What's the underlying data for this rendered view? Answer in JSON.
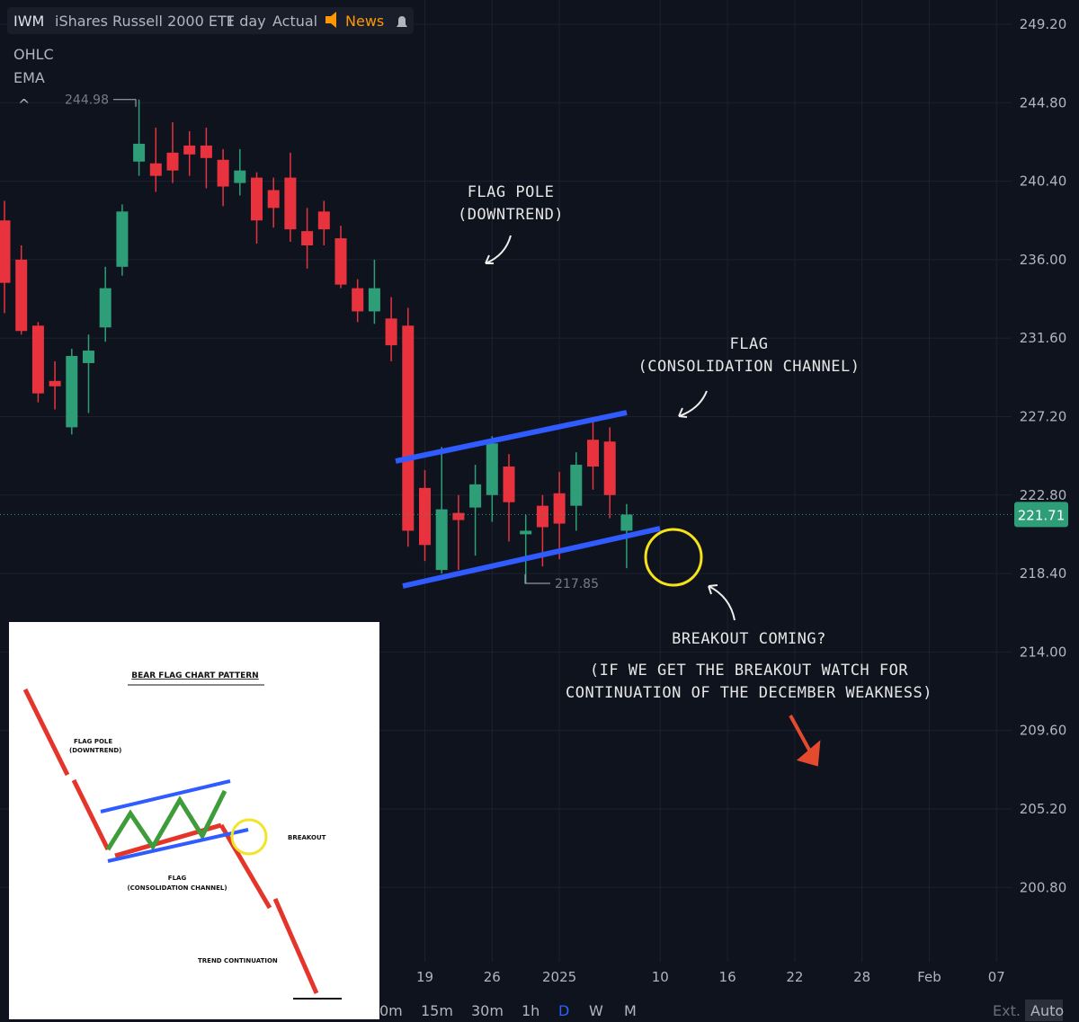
{
  "header": {
    "symbol": "IWM",
    "name": "iShares Russell 2000 ETF",
    "interval": "1 day",
    "mode": "Actual",
    "news": "News"
  },
  "indicators": [
    "OHLC",
    "EMA"
  ],
  "chart": {
    "type": "candlestick",
    "ylim": [
      196.63,
      250.56
    ],
    "yticks": [
      {
        "value": 249.2,
        "label": "249.20"
      },
      {
        "value": 244.8,
        "label": "244.80"
      },
      {
        "value": 240.4,
        "label": "240.40"
      },
      {
        "value": 236,
        "label": "236.00"
      },
      {
        "value": 231.6,
        "label": "231.60"
      },
      {
        "value": 227.2,
        "label": "227.20"
      },
      {
        "value": 222.8,
        "label": "222.80"
      },
      {
        "value": 218.4,
        "label": "218.40"
      },
      {
        "value": 214,
        "label": "214.00"
      },
      {
        "value": 209.6,
        "label": "209.60"
      },
      {
        "value": 205.2,
        "label": "205.20"
      },
      {
        "value": 200.8,
        "label": "200.80"
      }
    ],
    "last_price": 221.71,
    "high_label": 244.98,
    "low_label": 217.85,
    "up_color": "#2e9e78",
    "down_color": "#e8333f",
    "candles": [
      {
        "o": 238.2,
        "h": 239.3,
        "l": 233,
        "c": 234.7
      },
      {
        "o": 236,
        "h": 236.8,
        "l": 231.8,
        "c": 232
      },
      {
        "o": 232.3,
        "h": 232.5,
        "l": 228,
        "c": 228.5
      },
      {
        "o": 229.2,
        "h": 230.3,
        "l": 227.6,
        "c": 228.9
      },
      {
        "o": 226.6,
        "h": 231,
        "l": 226.2,
        "c": 230.6
      },
      {
        "o": 230.2,
        "h": 231.8,
        "l": 227.4,
        "c": 230.9
      },
      {
        "o": 232.2,
        "h": 235.6,
        "l": 231.4,
        "c": 234.4
      },
      {
        "o": 235.6,
        "h": 239.1,
        "l": 235.1,
        "c": 238.7
      },
      {
        "o": 241.5,
        "h": 244.98,
        "l": 240.7,
        "c": 242.5
      },
      {
        "o": 241.4,
        "h": 243.4,
        "l": 239.8,
        "c": 240.7
      },
      {
        "o": 242,
        "h": 243.7,
        "l": 240.3,
        "c": 241
      },
      {
        "o": 242.4,
        "h": 243.2,
        "l": 240.7,
        "c": 241.9
      },
      {
        "o": 242.4,
        "h": 243.4,
        "l": 240,
        "c": 241.7
      },
      {
        "o": 241.6,
        "h": 242.2,
        "l": 239,
        "c": 240.1
      },
      {
        "o": 240.3,
        "h": 242.2,
        "l": 239.6,
        "c": 241
      },
      {
        "o": 240.6,
        "h": 240.9,
        "l": 236.9,
        "c": 238.2
      },
      {
        "o": 239.9,
        "h": 240.6,
        "l": 237.8,
        "c": 238.9
      },
      {
        "o": 240.6,
        "h": 242,
        "l": 237,
        "c": 237.7
      },
      {
        "o": 237.6,
        "h": 238.9,
        "l": 235.5,
        "c": 236.8
      },
      {
        "o": 238.7,
        "h": 239.3,
        "l": 236.8,
        "c": 237.7
      },
      {
        "o": 237.2,
        "h": 237.9,
        "l": 234.4,
        "c": 234.6
      },
      {
        "o": 234.4,
        "h": 234.9,
        "l": 232.5,
        "c": 233.1
      },
      {
        "o": 233.1,
        "h": 236,
        "l": 232.4,
        "c": 234.4
      },
      {
        "o": 232.7,
        "h": 233.9,
        "l": 230.3,
        "c": 231.2
      },
      {
        "o": 232.3,
        "h": 233.3,
        "l": 219.9,
        "c": 220.8
      },
      {
        "o": 223.2,
        "h": 224.2,
        "l": 219.1,
        "c": 220
      },
      {
        "o": 218.6,
        "h": 225.5,
        "l": 218.4,
        "c": 222
      },
      {
        "o": 221.8,
        "h": 222.8,
        "l": 218.6,
        "c": 221.4
      },
      {
        "o": 222.1,
        "h": 224.5,
        "l": 219.4,
        "c": 223.4
      },
      {
        "o": 222.8,
        "h": 226.1,
        "l": 221.3,
        "c": 225.7
      },
      {
        "o": 224.4,
        "h": 225.1,
        "l": 220.2,
        "c": 222.4
      },
      {
        "o": 220.6,
        "h": 221.7,
        "l": 217.85,
        "c": 220.8
      },
      {
        "o": 222.2,
        "h": 222.8,
        "l": 218.8,
        "c": 221
      },
      {
        "o": 222.9,
        "h": 224.1,
        "l": 219.2,
        "c": 221.2
      },
      {
        "o": 222.2,
        "h": 225.2,
        "l": 220.8,
        "c": 224.5
      },
      {
        "o": 225.9,
        "h": 227.1,
        "l": 223.1,
        "c": 224.4
      },
      {
        "o": 225.8,
        "h": 226.6,
        "l": 221.5,
        "c": 222.8
      },
      {
        "o": 220.8,
        "h": 222.3,
        "l": 218.7,
        "c": 221.71
      }
    ],
    "dates": [
      "19",
      "26",
      "2025",
      "10",
      "16",
      "22",
      "28",
      "Feb",
      "07"
    ]
  },
  "annotations": {
    "pole": [
      "FLAG POLE",
      "(DOWNTREND)"
    ],
    "flag": [
      "FLAG",
      "(CONSOLIDATION CHANNEL)"
    ],
    "breakout": "BREAKOUT COMING?",
    "note": [
      "(IF WE GET THE BREAKOUT WATCH FOR",
      "CONTINUATION OF THE DECEMBER WEAKNESS)"
    ]
  },
  "toolbar": {
    "intervals": [
      "0m",
      "15m",
      "30m",
      "1h",
      "D",
      "W",
      "M"
    ],
    "right": [
      "Ext.",
      "Auto"
    ]
  },
  "inset": {
    "title": "BEAR FLAG CHART PATTERN",
    "pole": [
      "FLAG POLE",
      "(DOWNTREND)"
    ],
    "breakout": "BREAKOUT",
    "flag": [
      "FLAG",
      "(CONSOLIDATION CHANNEL)"
    ],
    "continuation": "TREND CONTINUATION"
  }
}
